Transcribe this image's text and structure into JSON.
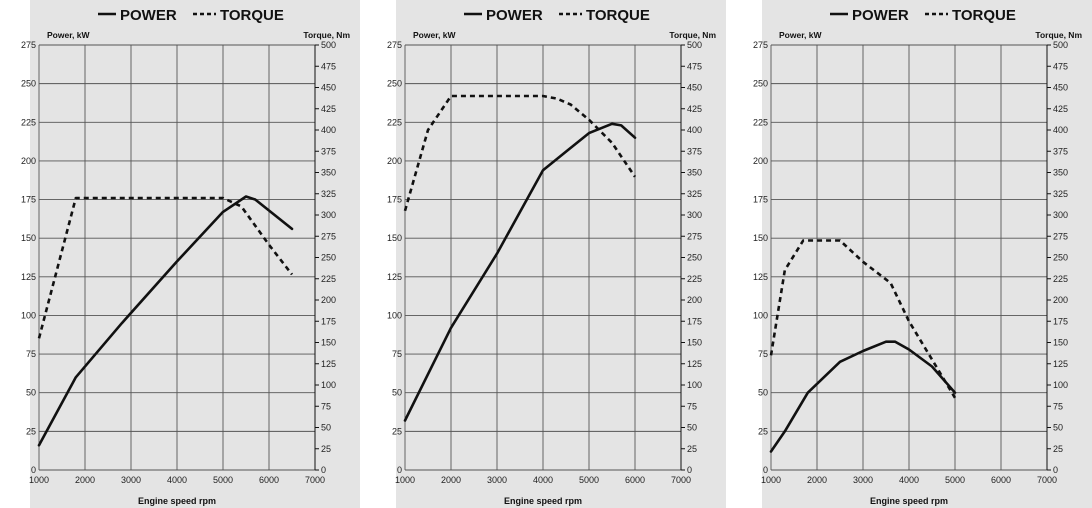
{
  "legend": {
    "power": "POWER",
    "torque": "TORQUE"
  },
  "colors": {
    "background": "#e4e4e4",
    "grid": "#555555",
    "line": "#111111"
  },
  "chart_data": [
    {
      "type": "line",
      "ylabel_left": "Power, kW",
      "ylabel_right": "Torque, Nm",
      "xlabel": "Engine speed rpm",
      "xlim": [
        1000,
        7000
      ],
      "ylim_left": [
        0,
        275
      ],
      "ylim_right": [
        0,
        500
      ],
      "x_ticks": [
        1000,
        2000,
        3000,
        4000,
        5000,
        6000,
        7000
      ],
      "y_ticks_left": [
        0,
        25,
        50,
        75,
        100,
        125,
        150,
        175,
        200,
        225,
        250,
        275
      ],
      "y_ticks_right": [
        0,
        25,
        50,
        75,
        100,
        125,
        150,
        175,
        200,
        225,
        250,
        275,
        300,
        325,
        350,
        375,
        400,
        425,
        450,
        475,
        500
      ],
      "grid": true,
      "series": [
        {
          "name": "POWER",
          "axis": "left",
          "style": "solid",
          "x": [
            1000,
            1800,
            2800,
            4000,
            5000,
            5500,
            5700,
            6500
          ],
          "y": [
            16,
            60,
            95,
            135,
            167,
            177,
            175,
            156
          ]
        },
        {
          "name": "TORQUE",
          "axis": "right",
          "style": "dashed",
          "x": [
            1000,
            1800,
            2500,
            3500,
            4500,
            5000,
            5400,
            6000,
            6500
          ],
          "y": [
            155,
            320,
            320,
            320,
            320,
            320,
            310,
            265,
            230
          ]
        }
      ]
    },
    {
      "type": "line",
      "ylabel_left": "Power, kW",
      "ylabel_right": "Torque, Nm",
      "xlabel": "Engine speed rpm",
      "xlim": [
        1000,
        7000
      ],
      "ylim_left": [
        0,
        275
      ],
      "ylim_right": [
        0,
        500
      ],
      "x_ticks": [
        1000,
        2000,
        3000,
        4000,
        5000,
        6000,
        7000
      ],
      "y_ticks_left": [
        0,
        25,
        50,
        75,
        100,
        125,
        150,
        175,
        200,
        225,
        250,
        275
      ],
      "y_ticks_right": [
        0,
        25,
        50,
        75,
        100,
        125,
        150,
        175,
        200,
        225,
        250,
        275,
        300,
        325,
        350,
        375,
        400,
        425,
        450,
        475,
        500
      ],
      "grid": true,
      "series": [
        {
          "name": "POWER",
          "axis": "left",
          "style": "solid",
          "x": [
            1000,
            2000,
            3000,
            4000,
            4500,
            5000,
            5500,
            5700,
            6000
          ],
          "y": [
            32,
            92,
            140,
            194,
            206,
            218,
            224,
            223,
            215
          ]
        },
        {
          "name": "TORQUE",
          "axis": "right",
          "style": "dashed",
          "x": [
            1000,
            1500,
            2000,
            2500,
            3000,
            3500,
            4000,
            4300,
            4600,
            5000,
            5500,
            6000
          ],
          "y": [
            305,
            400,
            440,
            440,
            440,
            440,
            440,
            437,
            430,
            412,
            385,
            345
          ]
        }
      ]
    },
    {
      "type": "line",
      "ylabel_left": "Power, kW",
      "ylabel_right": "Torque, Nm",
      "xlabel": "Engine speed rpm",
      "xlim": [
        1000,
        7000
      ],
      "ylim_left": [
        0,
        275
      ],
      "ylim_right": [
        0,
        500
      ],
      "x_ticks": [
        1000,
        2000,
        3000,
        4000,
        5000,
        6000,
        7000
      ],
      "y_ticks_left": [
        0,
        25,
        50,
        75,
        100,
        125,
        150,
        175,
        200,
        225,
        250,
        275
      ],
      "y_ticks_right": [
        0,
        25,
        50,
        75,
        100,
        125,
        150,
        175,
        200,
        225,
        250,
        275,
        300,
        325,
        350,
        375,
        400,
        425,
        450,
        475,
        500
      ],
      "grid": true,
      "series": [
        {
          "name": "POWER",
          "axis": "left",
          "style": "solid",
          "x": [
            1000,
            1300,
            1800,
            2500,
            3000,
            3500,
            3700,
            4000,
            4500,
            5000
          ],
          "y": [
            12,
            25,
            50,
            70,
            77,
            83,
            83,
            78,
            67,
            50
          ]
        },
        {
          "name": "TORQUE",
          "axis": "right",
          "style": "dashed",
          "x": [
            1000,
            1300,
            1700,
            2000,
            2500,
            3000,
            3600,
            4000,
            4500,
            5000
          ],
          "y": [
            135,
            235,
            270,
            270,
            270,
            245,
            220,
            175,
            130,
            85
          ]
        }
      ]
    }
  ]
}
